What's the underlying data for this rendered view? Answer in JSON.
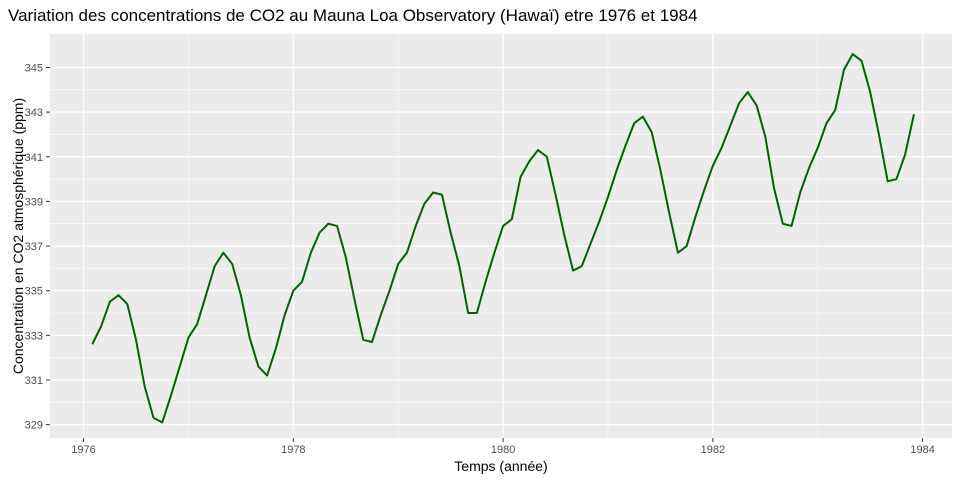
{
  "chart_data": {
    "type": "line",
    "title": "Variation des concentrations de CO2 au Mauna Loa Observatory (Hawaï) etre 1976 et 1984",
    "xlabel": "Temps (année)",
    "ylabel": "Concentration en CO2 atmosphérique (ppm)",
    "xlim": [
      1975.68,
      1984.28
    ],
    "ylim": [
      328.4,
      346.5
    ],
    "x_ticks": [
      1976,
      1978,
      1980,
      1982,
      1984
    ],
    "y_ticks": [
      329,
      331,
      333,
      335,
      337,
      339,
      341,
      343,
      345
    ],
    "grid": true,
    "line_color": "#006400",
    "background_color": "#ebebeb",
    "series": [
      {
        "x": [
          1976.083,
          1976.167,
          1976.25,
          1976.333,
          1976.417,
          1976.5,
          1976.583,
          1976.667,
          1976.75,
          1976.833,
          1976.917,
          1977.0,
          1977.083,
          1977.167,
          1977.25,
          1977.333,
          1977.417,
          1977.5,
          1977.583,
          1977.667,
          1977.75,
          1977.833,
          1977.917,
          1978.0,
          1978.083,
          1978.167,
          1978.25,
          1978.333,
          1978.417,
          1978.5,
          1978.583,
          1978.667,
          1978.75,
          1978.833,
          1978.917,
          1979.0,
          1979.083,
          1979.167,
          1979.25,
          1979.333,
          1979.417,
          1979.5,
          1979.583,
          1979.667,
          1979.75,
          1979.833,
          1979.917,
          1980.0,
          1980.083,
          1980.167,
          1980.25,
          1980.333,
          1980.417,
          1980.5,
          1980.583,
          1980.667,
          1980.75,
          1980.833,
          1980.917,
          1981.0,
          1981.083,
          1981.167,
          1981.25,
          1981.333,
          1981.417,
          1981.5,
          1981.583,
          1981.667,
          1981.75,
          1981.833,
          1981.917,
          1982.0,
          1982.083,
          1982.167,
          1982.25,
          1982.333,
          1982.417,
          1982.5,
          1982.583,
          1982.667,
          1982.75,
          1982.833,
          1982.917,
          1983.0,
          1983.083,
          1983.167,
          1983.25,
          1983.333,
          1983.417,
          1983.5,
          1983.583,
          1983.667,
          1983.75,
          1983.833,
          1983.917
        ],
        "values": [
          332.6,
          333.4,
          334.5,
          334.8,
          334.4,
          332.8,
          330.7,
          329.3,
          329.1,
          330.3,
          331.6,
          332.9,
          333.5,
          334.8,
          336.1,
          336.7,
          336.2,
          334.8,
          332.9,
          331.6,
          331.2,
          332.4,
          333.9,
          335.0,
          335.4,
          336.7,
          337.6,
          338.0,
          337.9,
          336.5,
          334.6,
          332.8,
          332.7,
          333.9,
          335.0,
          336.2,
          336.7,
          337.9,
          338.9,
          339.4,
          339.3,
          337.6,
          336.1,
          334.0,
          334.0,
          335.4,
          336.7,
          337.9,
          338.2,
          340.1,
          340.8,
          341.3,
          341.0,
          339.3,
          337.5,
          335.9,
          336.1,
          337.1,
          338.1,
          339.2,
          340.4,
          341.5,
          342.5,
          342.8,
          342.1,
          340.4,
          338.5,
          336.7,
          337.0,
          338.3,
          339.5,
          340.6,
          341.4,
          342.4,
          343.4,
          343.9,
          343.3,
          341.9,
          339.6,
          338.0,
          337.9,
          339.4,
          340.5,
          341.4,
          342.5,
          343.1,
          344.9,
          345.6,
          345.3,
          343.9,
          342.0,
          339.9,
          340.0,
          341.1,
          342.9
        ]
      }
    ]
  }
}
